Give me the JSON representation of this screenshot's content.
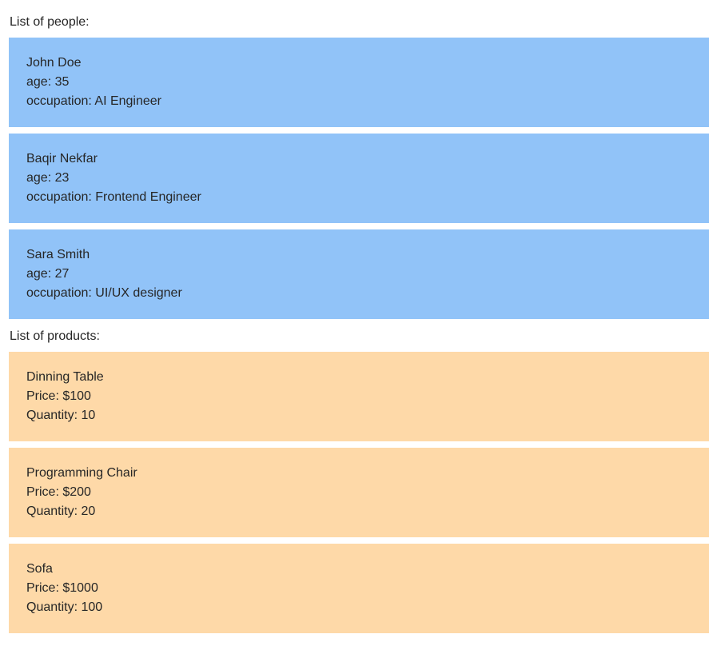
{
  "people": {
    "label": "List of people:",
    "items": [
      {
        "name": "John Doe",
        "age": "age: 35",
        "occupation": "occupation: AI Engineer"
      },
      {
        "name": "Baqir Nekfar",
        "age": "age: 23",
        "occupation": "occupation: Frontend Engineer"
      },
      {
        "name": "Sara Smith",
        "age": "age: 27",
        "occupation": "occupation: UI/UX designer"
      }
    ]
  },
  "products": {
    "label": "List of products:",
    "items": [
      {
        "name": "Dinning Table",
        "price": "Price: $100",
        "quantity": "Quantity: 10"
      },
      {
        "name": "Programming Chair",
        "price": "Price: $200",
        "quantity": "Quantity: 20"
      },
      {
        "name": "Sofa",
        "price": "Price: $1000",
        "quantity": "Quantity: 100"
      }
    ]
  },
  "colors": {
    "person_card_bg": "#91c3f8",
    "product_card_bg": "#fed9a8",
    "text": "#262626",
    "page_bg": "#ffffff"
  }
}
